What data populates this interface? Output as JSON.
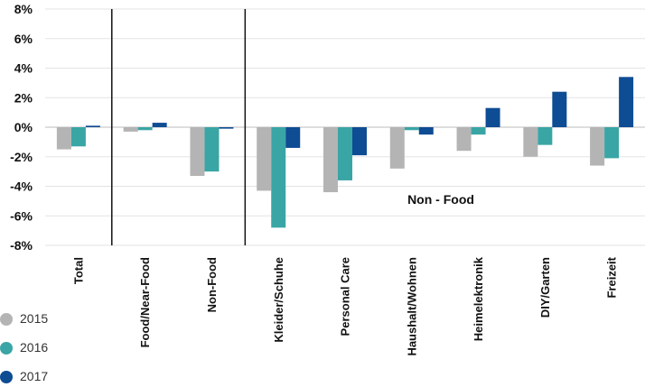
{
  "chart_data": {
    "type": "bar",
    "title": "",
    "xlabel": "",
    "ylabel": "",
    "ylim": [
      -8,
      8
    ],
    "yticks": [
      8,
      6,
      4,
      2,
      0,
      -2,
      -4,
      -6,
      -8
    ],
    "ytick_labels": [
      "8%",
      "6%",
      "4%",
      "2%",
      "0%",
      "-2%",
      "-4%",
      "-6%",
      "-8%"
    ],
    "grid": true,
    "categories": [
      "Total",
      "Food/Near-Food",
      "Non-Food",
      "Kleider/Schuhe",
      "Personal Care",
      "Haushalt/Wohnen",
      "Heimelektronik",
      "DIY/Garten",
      "Freizeit"
    ],
    "series": [
      {
        "name": "2015",
        "color": "#b4b4b4",
        "values": [
          -1.5,
          -0.3,
          -3.3,
          -4.3,
          -4.4,
          -2.8,
          -1.6,
          -2.0,
          -2.6
        ]
      },
      {
        "name": "2016",
        "color": "#3aa5a5",
        "values": [
          -1.3,
          -0.2,
          -3.0,
          -6.8,
          -3.6,
          -0.2,
          -0.5,
          -1.2,
          -2.1
        ]
      },
      {
        "name": "2017",
        "color": "#0e4c94",
        "values": [
          0.1,
          0.3,
          -0.1,
          -1.4,
          -1.9,
          -0.5,
          1.3,
          2.4,
          3.4
        ]
      }
    ],
    "separators_after_category": [
      0,
      2
    ],
    "annotation": "Non - Food",
    "legend_position": "bottom-left"
  }
}
